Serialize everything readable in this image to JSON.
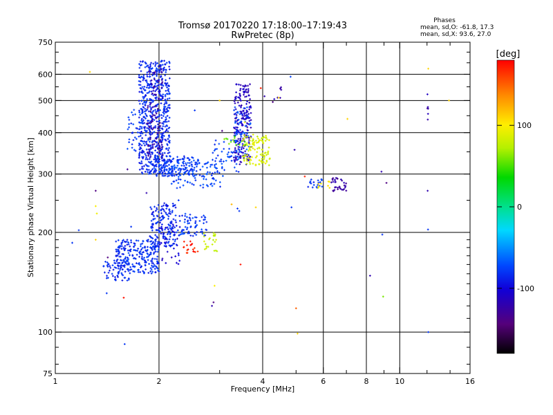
{
  "chart_data": {
    "type": "scatter",
    "title": "Tromsø 20170220 17:18:00–17:19:43",
    "subtitle": "RwPretec (8p)",
    "xlabel": "Frequency [MHz]",
    "ylabel": "Stationary phase Virtual Height [km]",
    "x_scale": "log",
    "y_scale": "log",
    "xlim": [
      1,
      16
    ],
    "ylim": [
      75,
      750
    ],
    "x_ticks": [
      1,
      2,
      4,
      6,
      8,
      10,
      16
    ],
    "x_tick_labels": [
      "1",
      "2",
      "4",
      "6",
      "8",
      "10",
      "16"
    ],
    "y_ticks": [
      75,
      100,
      200,
      300,
      400,
      500,
      600,
      750
    ],
    "y_tick_labels": [
      "75",
      "100",
      "200",
      "300",
      "400",
      "500",
      "600",
      "750"
    ],
    "grid": true,
    "phases_box": {
      "heading": "Phases",
      "line1": "mean, sd,O: -61.8, 17.3",
      "line2": "mean, sd,X:  93.6, 27.0"
    },
    "colorbar": {
      "label": "[deg]",
      "range": [
        -180,
        180
      ],
      "ticks": [
        -100,
        0,
        100
      ],
      "tick_labels": [
        "-100",
        "0",
        "100"
      ]
    },
    "point_groups": [
      {
        "x": [
          1.75,
          2.15
        ],
        "y": [
          300,
          660
        ],
        "color_deg": -85,
        "count": 620
      },
      {
        "x": [
          1.85,
          2.05
        ],
        "y": [
          330,
          640
        ],
        "color_deg": -125,
        "count": 90
      },
      {
        "x": [
          1.62,
          1.85
        ],
        "y": [
          350,
          470
        ],
        "color_deg": -80,
        "count": 45
      },
      {
        "x": [
          1.93,
          2.6
        ],
        "y": [
          295,
          340
        ],
        "color_deg": -80,
        "count": 140
      },
      {
        "x": [
          2.15,
          3.1
        ],
        "y": [
          272,
          335
        ],
        "color_deg": -75,
        "count": 110
      },
      {
        "x": [
          2.8,
          3.45
        ],
        "y": [
          300,
          380
        ],
        "color_deg": -75,
        "count": 45
      },
      {
        "x": [
          3.3,
          3.7
        ],
        "y": [
          320,
          560
        ],
        "color_deg": -112,
        "count": 220
      },
      {
        "x": [
          3.3,
          3.7
        ],
        "y": [
          330,
          480
        ],
        "color_deg": -70,
        "count": 50
      },
      {
        "x": [
          3.5,
          4.2
        ],
        "y": [
          318,
          395
        ],
        "color_deg": 85,
        "count": 110
      },
      {
        "x": [
          3.05,
          3.6
        ],
        "y": [
          360,
          390
        ],
        "color_deg": 55,
        "count": 15
      },
      {
        "x": [
          1.5,
          2.0
        ],
        "y": [
          150,
          190
        ],
        "color_deg": -82,
        "count": 260
      },
      {
        "x": [
          1.38,
          1.65
        ],
        "y": [
          143,
          165
        ],
        "color_deg": -85,
        "count": 50
      },
      {
        "x": [
          1.88,
          2.25
        ],
        "y": [
          180,
          245
        ],
        "color_deg": -85,
        "count": 160
      },
      {
        "x": [
          2.1,
          2.75
        ],
        "y": [
          195,
          228
        ],
        "color_deg": -80,
        "count": 80
      },
      {
        "x": [
          2.0,
          2.3
        ],
        "y": [
          160,
          215
        ],
        "color_deg": -105,
        "count": 30
      },
      {
        "x": [
          2.35,
          2.6
        ],
        "y": [
          173,
          188
        ],
        "color_deg": 170,
        "count": 18
      },
      {
        "x": [
          2.7,
          2.95
        ],
        "y": [
          175,
          200
        ],
        "color_deg": 80,
        "count": 24
      },
      {
        "x": [
          5.4,
          6.0
        ],
        "y": [
          272,
          290
        ],
        "color_deg": -80,
        "count": 20
      },
      {
        "x": [
          5.8,
          6.3
        ],
        "y": [
          272,
          285
        ],
        "color_deg": 100,
        "count": 8
      },
      {
        "x": [
          6.3,
          7.0
        ],
        "y": [
          266,
          292
        ],
        "color_deg": -125,
        "count": 35
      },
      {
        "x": [
          4.3,
          4.6
        ],
        "y": [
          505,
          550
        ],
        "color_deg": -120,
        "count": 6
      },
      {
        "x": [
          12.0,
          12.1
        ],
        "y": [
          430,
          570
        ],
        "color_deg": -120,
        "count": 6
      }
    ],
    "scattered_points": [
      {
        "x": 1.26,
        "y": 610,
        "deg": 110
      },
      {
        "x": 1.31,
        "y": 267,
        "deg": -140
      },
      {
        "x": 1.31,
        "y": 240,
        "deg": 100
      },
      {
        "x": 1.32,
        "y": 228,
        "deg": 95
      },
      {
        "x": 1.31,
        "y": 190,
        "deg": 110
      },
      {
        "x": 1.17,
        "y": 203,
        "deg": -80
      },
      {
        "x": 1.12,
        "y": 186,
        "deg": -80
      },
      {
        "x": 1.42,
        "y": 168,
        "deg": -140
      },
      {
        "x": 1.41,
        "y": 131,
        "deg": -80
      },
      {
        "x": 1.62,
        "y": 310,
        "deg": -130
      },
      {
        "x": 1.66,
        "y": 208,
        "deg": -80
      },
      {
        "x": 1.59,
        "y": 92,
        "deg": -80
      },
      {
        "x": 1.58,
        "y": 127,
        "deg": 175
      },
      {
        "x": 1.84,
        "y": 263,
        "deg": -120
      },
      {
        "x": 2.28,
        "y": 250,
        "deg": -80
      },
      {
        "x": 2.54,
        "y": 467,
        "deg": -80
      },
      {
        "x": 2.6,
        "y": 330,
        "deg": -80
      },
      {
        "x": 2.85,
        "y": 120,
        "deg": -120
      },
      {
        "x": 2.88,
        "y": 123,
        "deg": -140
      },
      {
        "x": 2.9,
        "y": 138,
        "deg": 100
      },
      {
        "x": 3.0,
        "y": 500,
        "deg": 110
      },
      {
        "x": 3.05,
        "y": 405,
        "deg": -140
      },
      {
        "x": 3.25,
        "y": 243,
        "deg": 120
      },
      {
        "x": 3.38,
        "y": 236,
        "deg": -80
      },
      {
        "x": 3.42,
        "y": 232,
        "deg": -80
      },
      {
        "x": 3.45,
        "y": 160,
        "deg": 175
      },
      {
        "x": 3.55,
        "y": 430,
        "deg": 95
      },
      {
        "x": 3.82,
        "y": 238,
        "deg": 110
      },
      {
        "x": 3.95,
        "y": 545,
        "deg": 170
      },
      {
        "x": 4.05,
        "y": 515,
        "deg": -120
      },
      {
        "x": 4.28,
        "y": 495,
        "deg": -140
      },
      {
        "x": 4.45,
        "y": 510,
        "deg": 110
      },
      {
        "x": 4.82,
        "y": 590,
        "deg": -75
      },
      {
        "x": 4.85,
        "y": 238,
        "deg": -80
      },
      {
        "x": 4.95,
        "y": 355,
        "deg": -120
      },
      {
        "x": 5.0,
        "y": 118,
        "deg": 150
      },
      {
        "x": 5.05,
        "y": 99,
        "deg": 110
      },
      {
        "x": 5.3,
        "y": 295,
        "deg": 170
      },
      {
        "x": 7.05,
        "y": 440,
        "deg": 110
      },
      {
        "x": 8.2,
        "y": 148,
        "deg": -120
      },
      {
        "x": 8.85,
        "y": 305,
        "deg": -120
      },
      {
        "x": 8.9,
        "y": 197,
        "deg": -80
      },
      {
        "x": 8.95,
        "y": 128,
        "deg": 60
      },
      {
        "x": 9.15,
        "y": 282,
        "deg": -140
      },
      {
        "x": 12.1,
        "y": 624,
        "deg": 110
      },
      {
        "x": 12.05,
        "y": 267,
        "deg": -120
      },
      {
        "x": 12.08,
        "y": 204,
        "deg": -80
      },
      {
        "x": 12.1,
        "y": 100,
        "deg": -80
      },
      {
        "x": 13.9,
        "y": 500,
        "deg": 110
      }
    ]
  }
}
